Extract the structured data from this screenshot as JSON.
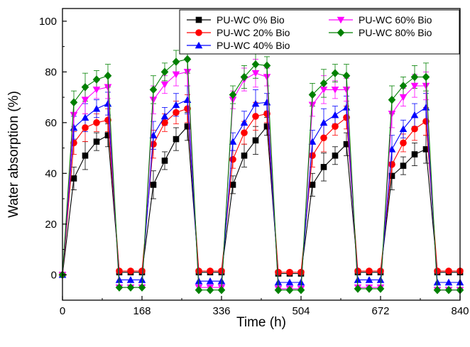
{
  "chart_data": {
    "type": "line",
    "xlabel": "Time (h)",
    "ylabel": "Water absorption (%)",
    "xlim": [
      0,
      840
    ],
    "ylim": [
      -10,
      105
    ],
    "xticks": [
      0,
      168,
      336,
      504,
      672,
      840
    ],
    "yticks": [
      0,
      20,
      40,
      60,
      80,
      100
    ],
    "legend": "top-right",
    "grid": false,
    "series": [
      {
        "name": "PU-WC 0% Bio",
        "color": "#000000",
        "marker": "square",
        "x": [
          0,
          24,
          48,
          72,
          96,
          120,
          144,
          168,
          192,
          216,
          240,
          264,
          288,
          312,
          336,
          360,
          384,
          408,
          432,
          456,
          480,
          504,
          528,
          552,
          576,
          600,
          624,
          648,
          672,
          696,
          720,
          744,
          768,
          792,
          816,
          840
        ],
        "y": [
          0,
          38,
          47,
          52.5,
          55,
          1,
          1,
          1,
          35.5,
          45,
          53.5,
          58.5,
          1,
          1,
          1,
          35.5,
          47,
          53,
          58.5,
          0.5,
          0.5,
          0.5,
          35.5,
          42.5,
          47,
          51.5,
          1,
          1,
          1,
          39,
          43,
          47.5,
          49.5,
          1,
          1,
          1
        ]
      },
      {
        "name": "PU-WC 20% Bio",
        "color": "#ff0000",
        "marker": "circle",
        "x": [
          0,
          24,
          48,
          72,
          96,
          120,
          144,
          168,
          192,
          216,
          240,
          264,
          288,
          312,
          336,
          360,
          384,
          408,
          432,
          456,
          480,
          504,
          528,
          552,
          576,
          600,
          624,
          648,
          672,
          696,
          720,
          744,
          768,
          792,
          816,
          840
        ],
        "y": [
          0,
          52,
          58,
          60,
          61,
          1.5,
          1.5,
          1.5,
          51.5,
          60,
          64,
          65.5,
          1.5,
          1.5,
          1.5,
          45.5,
          56,
          62.5,
          63.5,
          1,
          1,
          1,
          47,
          54,
          58.5,
          62,
          1.5,
          1.5,
          1.5,
          43.5,
          52,
          57.5,
          60.5,
          1.5,
          1.5,
          1.5
        ]
      },
      {
        "name": "PU-WC 40% Bio",
        "color": "#0000ff",
        "marker": "triangle-up",
        "x": [
          0,
          24,
          48,
          72,
          96,
          120,
          144,
          168,
          192,
          216,
          240,
          264,
          288,
          312,
          336,
          360,
          384,
          408,
          432,
          456,
          480,
          504,
          528,
          552,
          576,
          600,
          624,
          648,
          672,
          696,
          720,
          744,
          768,
          792,
          816,
          840
        ],
        "y": [
          0,
          58,
          62,
          65.5,
          67.5,
          -2,
          -2,
          -2,
          55,
          62.5,
          67,
          69,
          -2.5,
          -2.5,
          -2.5,
          52.5,
          60,
          67.5,
          68,
          -3,
          -3,
          -3,
          52.5,
          60,
          63,
          66,
          -2,
          -2,
          -2,
          49.5,
          57.5,
          63,
          66,
          -3,
          -3,
          -3
        ]
      },
      {
        "name": "PU-WC 60% Bio",
        "color": "#ff00ff",
        "marker": "triangle-down",
        "x": [
          0,
          24,
          48,
          72,
          96,
          120,
          144,
          168,
          192,
          216,
          240,
          264,
          288,
          312,
          336,
          360,
          384,
          408,
          432,
          456,
          480,
          504,
          528,
          552,
          576,
          600,
          624,
          648,
          672,
          696,
          720,
          744,
          768,
          792,
          816,
          840
        ],
        "y": [
          0,
          63,
          69,
          73,
          74,
          -5,
          -5,
          -5,
          69,
          75,
          79,
          80,
          -5,
          -5,
          -5,
          69,
          77,
          79.5,
          78,
          -5.5,
          -5.5,
          -5.5,
          67,
          73,
          73,
          73,
          -5,
          -5,
          -5,
          63.5,
          70,
          74.5,
          74.5,
          -6,
          -6,
          -6
        ]
      },
      {
        "name": "PU-WC 80% Bio",
        "color": "#008000",
        "marker": "diamond",
        "x": [
          0,
          24,
          48,
          72,
          96,
          120,
          144,
          168,
          192,
          216,
          240,
          264,
          288,
          312,
          336,
          360,
          384,
          408,
          432,
          456,
          480,
          504,
          528,
          552,
          576,
          600,
          624,
          648,
          672,
          696,
          720,
          744,
          768,
          792,
          816,
          840
        ],
        "y": [
          0,
          68,
          74,
          77,
          78.5,
          -5,
          -5,
          -5,
          73,
          80,
          84,
          85,
          -6,
          -6,
          -6,
          71,
          78,
          83,
          82.5,
          -6,
          -6,
          -6,
          71,
          75.5,
          79.5,
          78.5,
          -5.5,
          -5.5,
          -5.5,
          69,
          74.5,
          78,
          78,
          -6,
          -6,
          -6
        ]
      }
    ]
  }
}
